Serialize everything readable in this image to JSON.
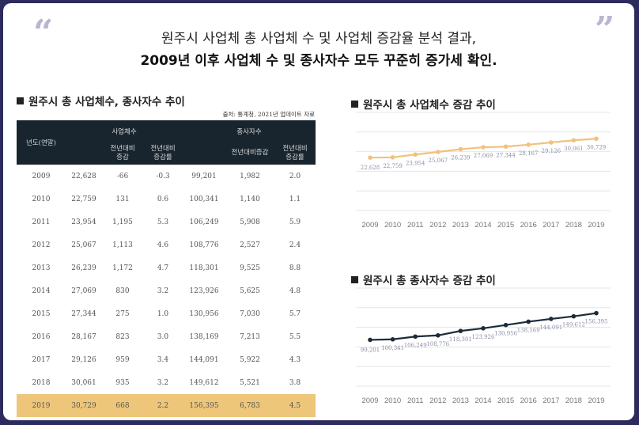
{
  "headline": {
    "line1": "원주시 사업체 총 사업체 수 및 사업체 증감율 분석 결과,",
    "line2": "2009년 이후 사업체 수 및 종사자수 모두 꾸준히 증가세 확인."
  },
  "table_section": {
    "title": "원주시 총 사업체수, 종사자수 추이",
    "source": "출처: 통계청, 2021년 업데이트 자료",
    "headers": {
      "year": "년도(연말)",
      "biz_group": "사업체수",
      "emp_group": "종사자수",
      "biz_yoy": "전년대비\n증감",
      "biz_rate": "전년대비\n증감률",
      "emp_yoy": "전년대비증감",
      "emp_rate": "전년대비\n증감률"
    },
    "rows": [
      [
        "2009",
        "22,628",
        "-66",
        "-0.3",
        "99,201",
        "1,982",
        "2.0"
      ],
      [
        "2010",
        "22,759",
        "131",
        "0.6",
        "100,341",
        "1,140",
        "1.1"
      ],
      [
        "2011",
        "23,954",
        "1,195",
        "5.3",
        "106,249",
        "5,908",
        "5.9"
      ],
      [
        "2012",
        "25,067",
        "1,113",
        "4.6",
        "108,776",
        "2,527",
        "2.4"
      ],
      [
        "2013",
        "26,239",
        "1,172",
        "4.7",
        "118,301",
        "9,525",
        "8.8"
      ],
      [
        "2014",
        "27,069",
        "830",
        "3.2",
        "123,926",
        "5,625",
        "4.8"
      ],
      [
        "2015",
        "27,344",
        "275",
        "1.0",
        "130,956",
        "7,030",
        "5.7"
      ],
      [
        "2016",
        "28,167",
        "823",
        "3.0",
        "138,169",
        "7,213",
        "5.5"
      ],
      [
        "2017",
        "29,126",
        "959",
        "3.4",
        "144,091",
        "5,922",
        "4.3"
      ],
      [
        "2018",
        "30,061",
        "935",
        "3.2",
        "149,612",
        "5,521",
        "3.8"
      ],
      [
        "2019",
        "30,729",
        "668",
        "2.2",
        "156,395",
        "6,783",
        "4.5"
      ]
    ]
  },
  "colors": {
    "background": "#2d2a5e",
    "table_header": "#18252f",
    "highlight_row": "#edc67a",
    "business_line": "#f0c27d",
    "employee_line": "#1c2b3a",
    "grid": "#e6e6e6"
  },
  "chart_data": [
    {
      "type": "line",
      "title": "원주시 총 사업체수 증감 추이",
      "categories": [
        "2009",
        "2010",
        "2011",
        "2012",
        "2013",
        "2014",
        "2015",
        "2016",
        "2017",
        "2018",
        "2019"
      ],
      "series": [
        {
          "values": [
            22628,
            22759,
            23954,
            25067,
            26239,
            27069,
            27344,
            28167,
            29126,
            30061,
            30729
          ]
        }
      ],
      "data_labels": [
        "22,628",
        "22,759",
        "23,954",
        "25,067",
        "26,239",
        "27,069",
        "27,344",
        "28,167",
        "29,126",
        "30,061",
        "30,729"
      ],
      "ylim": [
        0,
        42000
      ],
      "grid": "horizontal",
      "legend": "none"
    },
    {
      "type": "line",
      "title": "원주시 총 종사자수 증감 추이",
      "categories": [
        "2009",
        "2010",
        "2011",
        "2012",
        "2013",
        "2014",
        "2015",
        "2016",
        "2017",
        "2018",
        "2019"
      ],
      "series": [
        {
          "values": [
            99201,
            100341,
            106249,
            108776,
            118301,
            123926,
            130956,
            138169,
            144091,
            149612,
            156395
          ]
        }
      ],
      "data_labels": [
        "99,201",
        "100,341",
        "106,249",
        "108,776",
        "118,301",
        "123,926",
        "130,956",
        "138,169",
        "144,091",
        "149,612",
        "156,395"
      ],
      "ylim": [
        0,
        210000
      ],
      "grid": "horizontal",
      "legend": "none"
    }
  ]
}
